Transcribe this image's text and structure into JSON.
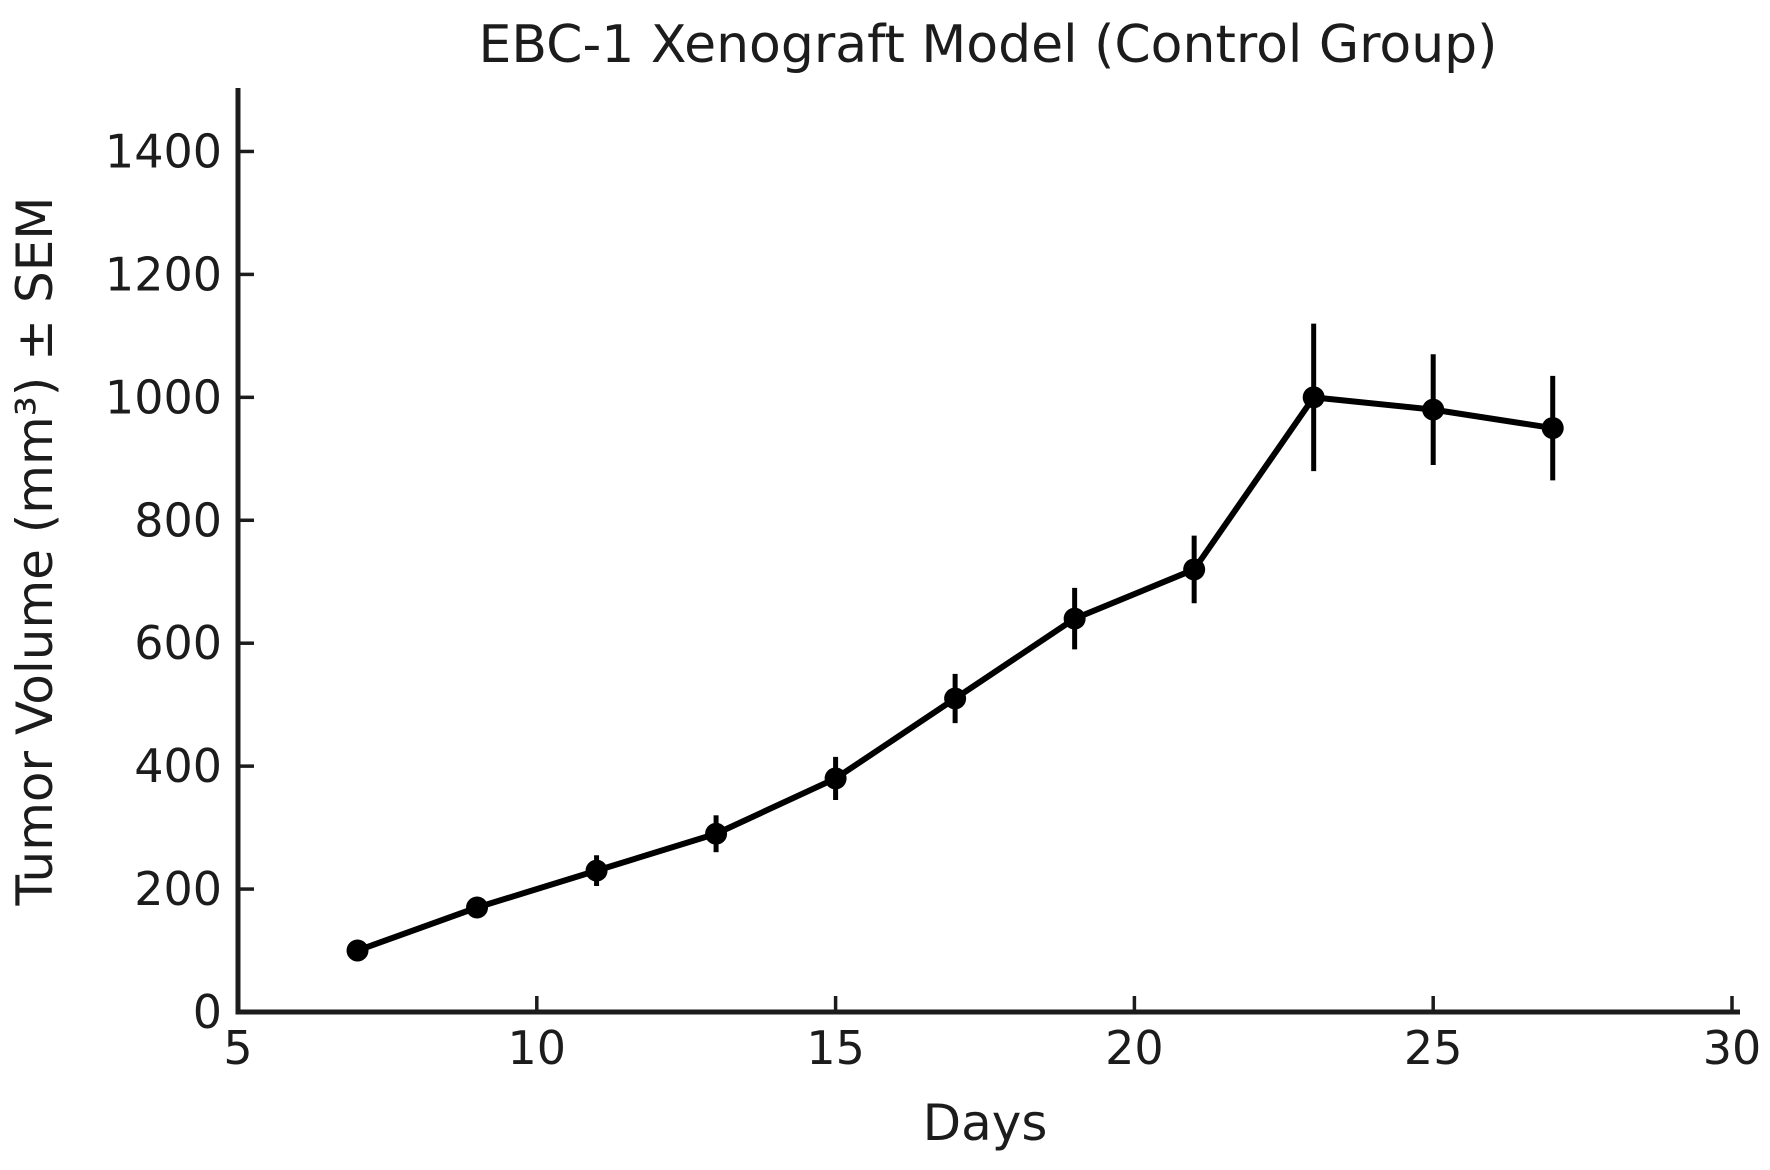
{
  "chart_data": {
    "type": "line",
    "title": "EBC-1 Xenograft Model (Control Group)",
    "xlabel": "Days",
    "ylabel": "Tumor Volume (mm³) ± SEM",
    "series": [
      {
        "name": "Control Group",
        "x": [
          7,
          9,
          11,
          13,
          15,
          17,
          19,
          21,
          23,
          25,
          27
        ],
        "y": [
          100,
          170,
          230,
          290,
          380,
          510,
          640,
          720,
          1000,
          980,
          950
        ],
        "sem": [
          8,
          12,
          25,
          30,
          35,
          40,
          50,
          55,
          120,
          90,
          85
        ],
        "color": "#000000",
        "marker": "circle"
      }
    ],
    "xlim": [
      5,
      30
    ],
    "ylim": [
      0,
      1500
    ],
    "xticks": [
      5,
      10,
      15,
      20,
      25,
      30
    ],
    "yticks": [
      0,
      200,
      400,
      600,
      800,
      1000,
      1200,
      1400
    ],
    "grid": false,
    "legend": "none",
    "error_bars": "vertical, no caps",
    "axis_color": "#1c1c1c"
  }
}
